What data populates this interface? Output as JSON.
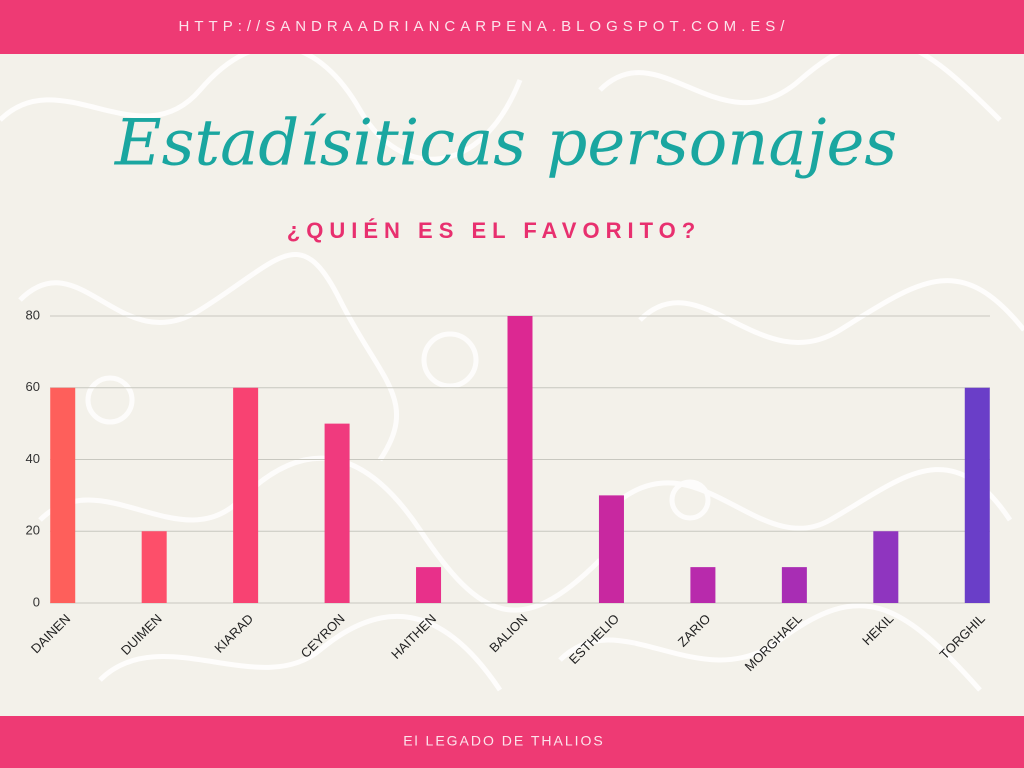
{
  "header": "HTTP://SANDRAADRIANCARPENA.BLOGSPOT.COM.ES/",
  "footer": "El LEGADO DE THALIOS",
  "chart_data": {
    "type": "bar",
    "title": "Estadísiticas personajes",
    "subtitle": "¿QUIÉN ES EL FAVORITO?",
    "categories": [
      "DAINEN",
      "DUIMEN",
      "KIARAD",
      "CEYRON",
      "HAITHEN",
      "BALION",
      "ESTHELIO",
      "ZARIO",
      "MORGHAEL",
      "HEKIL",
      "TORGHIL"
    ],
    "values": [
      60,
      20,
      60,
      50,
      10,
      80,
      30,
      10,
      10,
      20,
      60
    ],
    "colors": [
      "#fe5f5b",
      "#fd4f6a",
      "#f84272",
      "#f03a7e",
      "#e8308a",
      "#dc2892",
      "#c828a0",
      "#b82aac",
      "#a82db4",
      "#8f35bf",
      "#6a3ec8"
    ],
    "ylim": [
      0,
      80
    ],
    "yticks": [
      0,
      20,
      40,
      60,
      80
    ],
    "grid": true
  }
}
